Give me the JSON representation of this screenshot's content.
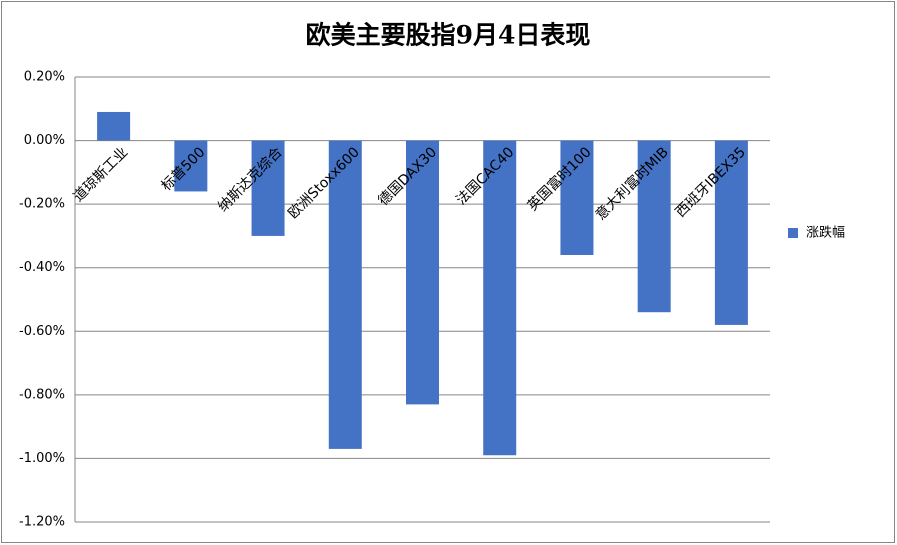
{
  "chart_data": {
    "type": "bar",
    "title": "欧美主要股指9月4日表现",
    "categories": [
      "道琼斯工业",
      "标普500",
      "纳斯达克综合",
      "欧洲Stoxx600",
      "德国DAX30",
      "法国CAC40",
      "英国富时100",
      "意大利富时MIB",
      "西班牙IBEX35"
    ],
    "series": [
      {
        "name": "涨跌幅",
        "color": "#4472c4",
        "values": [
          0.09,
          -0.16,
          -0.3,
          -0.97,
          -0.83,
          -0.99,
          -0.36,
          -0.54,
          -0.58
        ]
      }
    ],
    "ylim": [
      -1.2,
      0.2
    ],
    "yticks": [
      {
        "value": 0.2,
        "label": "0.20%"
      },
      {
        "value": 0,
        "label": "0.00%"
      },
      {
        "value": -0.2,
        "label": "-0.20%"
      },
      {
        "value": -0.4,
        "label": "-0.40%"
      },
      {
        "value": -0.6,
        "label": "-0.60%"
      },
      {
        "value": -0.8,
        "label": "-0.80%"
      },
      {
        "value": -1.0,
        "label": "-1.00%"
      },
      {
        "value": -1.2,
        "label": "-1.20%"
      }
    ],
    "grid": true,
    "legend": "right"
  }
}
